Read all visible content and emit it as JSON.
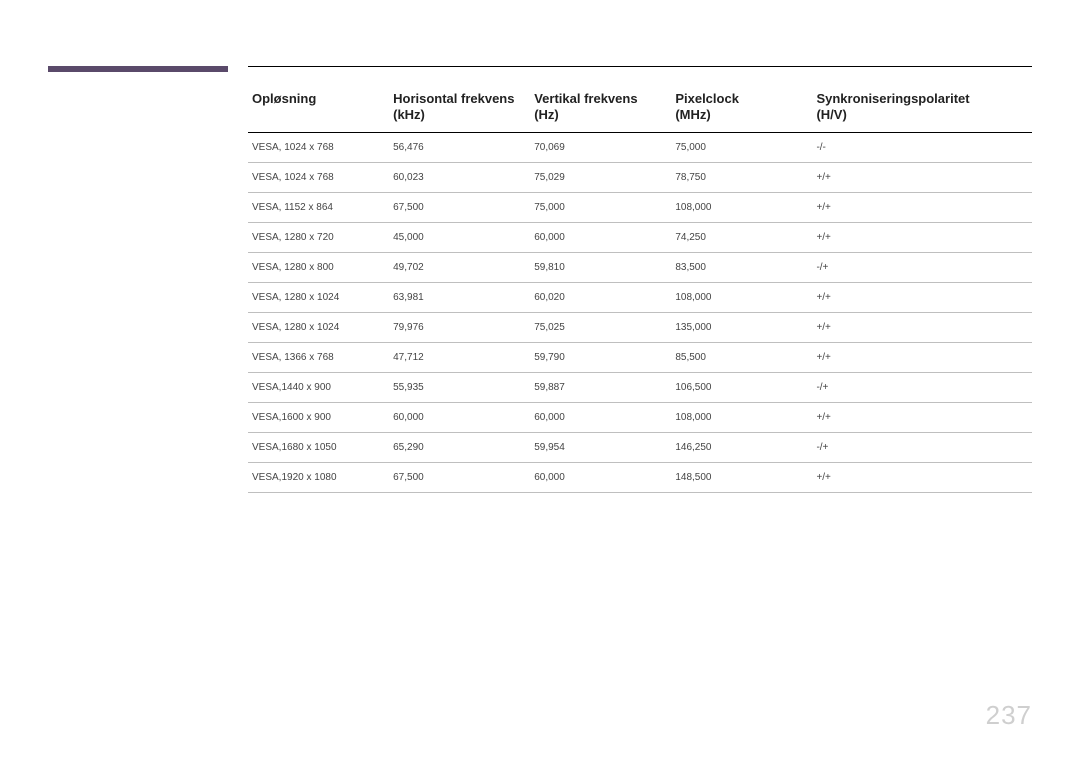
{
  "page_number": "237",
  "accent_bar_color": "#5a4a6a",
  "table": {
    "columns": [
      {
        "line1": "Opløsning",
        "line2": ""
      },
      {
        "line1": "Horisontal frekvens",
        "line2": "(kHz)"
      },
      {
        "line1": "Vertikal frekvens",
        "line2": "(Hz)"
      },
      {
        "line1": "Pixelclock",
        "line2": "(MHz)"
      },
      {
        "line1": "Synkroniseringspolaritet",
        "line2": "(H/V)"
      }
    ],
    "rows": [
      [
        "VESA, 1024 x 768",
        "56,476",
        "70,069",
        "75,000",
        "-/-"
      ],
      [
        "VESA, 1024 x 768",
        "60,023",
        "75,029",
        "78,750",
        "+/+"
      ],
      [
        "VESA, 1152 x 864",
        "67,500",
        "75,000",
        "108,000",
        "+/+"
      ],
      [
        "VESA, 1280 x 720",
        "45,000",
        "60,000",
        "74,250",
        "+/+"
      ],
      [
        "VESA, 1280 x 800",
        "49,702",
        "59,810",
        "83,500",
        "-/+"
      ],
      [
        "VESA, 1280 x 1024",
        "63,981",
        "60,020",
        "108,000",
        "+/+"
      ],
      [
        "VESA, 1280 x 1024",
        "79,976",
        "75,025",
        "135,000",
        "+/+"
      ],
      [
        "VESA, 1366 x 768",
        "47,712",
        "59,790",
        "85,500",
        "+/+"
      ],
      [
        "VESA,1440 x 900",
        "55,935",
        "59,887",
        "106,500",
        "-/+"
      ],
      [
        "VESA,1600 x 900",
        "60,000",
        "60,000",
        "108,000",
        "+/+"
      ],
      [
        "VESA,1680 x 1050",
        "65,290",
        "59,954",
        "146,250",
        "-/+"
      ],
      [
        "VESA,1920 x 1080",
        "67,500",
        "60,000",
        "148,500",
        "+/+"
      ]
    ]
  }
}
